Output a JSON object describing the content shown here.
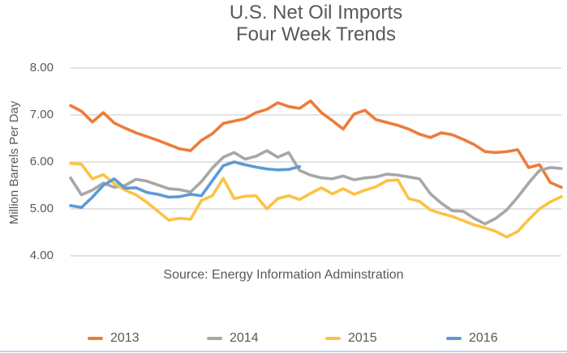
{
  "title": {
    "line1": "U.S. Net Oil Imports",
    "line2": "Four Week Trends"
  },
  "y_axis": {
    "title": "Million Barrels Per Day",
    "ticks": [
      "8.00",
      "7.00",
      "6.00",
      "5.00",
      "4.00"
    ]
  },
  "source_note": "Source: Energy Information Adminstration",
  "legend": {
    "items": [
      {
        "label": "2013",
        "color": "#ED7C39"
      },
      {
        "label": "2014",
        "color": "#A7A7A7"
      },
      {
        "label": "2015",
        "color": "#FCC244"
      },
      {
        "label": "2016",
        "color": "#5B9BD5"
      }
    ]
  },
  "colors": {
    "text": "#595959",
    "gridline": "#D2D2D2",
    "bottom_border": "#BDD7EE"
  },
  "chart_data": {
    "type": "line",
    "title": "U.S. Net Oil Imports — Four Week Trends",
    "xlabel": "",
    "ylabel": "Million Barrels Per Day",
    "ylim": [
      4,
      8
    ],
    "yticks": [
      8,
      7,
      6,
      5,
      4
    ],
    "x_axis_labels": "none (weekly four-week-average observations, unlabeled)",
    "grid": "horizontal",
    "legend_position": "bottom",
    "series": [
      {
        "name": "2013",
        "color": "#ED7C39",
        "values": [
          7.2,
          7.08,
          6.85,
          7.05,
          6.83,
          6.72,
          6.62,
          6.54,
          6.46,
          6.37,
          6.28,
          6.24,
          6.46,
          6.6,
          6.82,
          6.87,
          6.92,
          7.05,
          7.12,
          7.26,
          7.18,
          7.14,
          7.3,
          7.05,
          6.88,
          6.7,
          7.02,
          7.1,
          6.9,
          6.84,
          6.78,
          6.7,
          6.59,
          6.52,
          6.62,
          6.58,
          6.48,
          6.37,
          6.22,
          6.2,
          6.22,
          6.26,
          5.88,
          5.94,
          5.56,
          5.46
        ]
      },
      {
        "name": "2014",
        "color": "#A7A7A7",
        "values": [
          5.66,
          5.3,
          5.4,
          5.55,
          5.46,
          5.5,
          5.63,
          5.59,
          5.51,
          5.43,
          5.41,
          5.36,
          5.58,
          5.87,
          6.1,
          6.2,
          6.06,
          6.12,
          6.24,
          6.1,
          6.2,
          5.82,
          5.72,
          5.66,
          5.64,
          5.7,
          5.62,
          5.66,
          5.68,
          5.74,
          5.72,
          5.68,
          5.64,
          5.32,
          5.12,
          4.96,
          4.95,
          4.8,
          4.68,
          4.8,
          4.98,
          5.25,
          5.55,
          5.82,
          5.88,
          5.86
        ]
      },
      {
        "name": "2015",
        "color": "#FCC244",
        "values": [
          5.97,
          5.95,
          5.64,
          5.73,
          5.54,
          5.4,
          5.3,
          5.14,
          4.95,
          4.76,
          4.8,
          4.78,
          5.18,
          5.28,
          5.65,
          5.22,
          5.27,
          5.28,
          5.0,
          5.22,
          5.28,
          5.2,
          5.33,
          5.45,
          5.32,
          5.43,
          5.31,
          5.4,
          5.47,
          5.6,
          5.62,
          5.22,
          5.16,
          4.98,
          4.9,
          4.84,
          4.75,
          4.66,
          4.6,
          4.52,
          4.4,
          4.52,
          4.77,
          5.0,
          5.15,
          5.26
        ]
      },
      {
        "name": "2016",
        "color": "#5B9BD5",
        "values": [
          5.07,
          5.03,
          5.25,
          5.5,
          5.64,
          5.44,
          5.45,
          5.35,
          5.31,
          5.25,
          5.26,
          5.31,
          5.28,
          5.6,
          5.92,
          6.0,
          5.94,
          5.89,
          5.85,
          5.83,
          5.84,
          5.9
        ]
      }
    ]
  }
}
